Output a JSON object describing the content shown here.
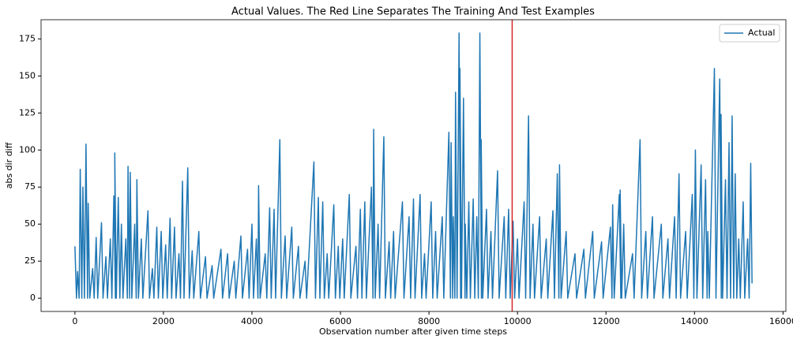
{
  "chart_data": {
    "type": "line",
    "title": "Actual Values. The Red Line Separates The Training And Test Examples",
    "x_label": "Observation number after given time steps",
    "y_label": "abs dir diff",
    "x": [
      0,
      35,
      60,
      95,
      120,
      155,
      180,
      215,
      250,
      285,
      300,
      335,
      400,
      435,
      480,
      515,
      600,
      635,
      700,
      735,
      800,
      835,
      880,
      915,
      900,
      935,
      980,
      1015,
      1050,
      1085,
      1150,
      1185,
      1200,
      1235,
      1250,
      1285,
      1350,
      1385,
      1400,
      1435,
      1500,
      1535,
      1650,
      1685,
      1750,
      1785,
      1850,
      1885,
      1950,
      1985,
      2050,
      2085,
      2150,
      2185,
      2250,
      2285,
      2350,
      2385,
      2430,
      2465,
      2550,
      2585,
      2650,
      2685,
      2800,
      2835,
      2950,
      2985,
      3100,
      3135,
      3300,
      3335,
      3450,
      3485,
      3600,
      3635,
      3750,
      3785,
      3900,
      3935,
      4000,
      4035,
      4100,
      4135,
      4150,
      4185,
      4300,
      4335,
      4400,
      4435,
      4500,
      4535,
      4630,
      4665,
      4750,
      4785,
      4900,
      4935,
      5050,
      5085,
      5200,
      5235,
      5400,
      5435,
      5500,
      5535,
      5600,
      5635,
      5700,
      5735,
      5850,
      5885,
      5950,
      5985,
      6050,
      6085,
      6200,
      6235,
      6350,
      6385,
      6450,
      6485,
      6550,
      6585,
      6700,
      6735,
      6750,
      6785,
      6850,
      6885,
      6980,
      7015,
      7100,
      7135,
      7200,
      7235,
      7400,
      7435,
      7550,
      7585,
      7650,
      7685,
      7800,
      7835,
      7900,
      7935,
      8050,
      8085,
      8150,
      8185,
      8300,
      8335,
      8450,
      8485,
      8500,
      8535,
      8550,
      8585,
      8600,
      8635,
      8680,
      8715,
      8700,
      8735,
      8780,
      8815,
      8820,
      8855,
      8900,
      8935,
      9000,
      9035,
      9080,
      9115,
      9150,
      9185,
      9180,
      9215,
      9300,
      9335,
      9400,
      9435,
      9550,
      9585,
      9700,
      9735,
      9800,
      9835,
      9900,
      9935,
      10000,
      10035,
      10150,
      10185,
      10250,
      10285,
      10350,
      10385,
      10500,
      10535,
      10650,
      10685,
      10800,
      10835,
      10900,
      10935,
      10950,
      10985,
      11100,
      11135,
      11300,
      11335,
      11500,
      11535,
      11700,
      11735,
      11900,
      11935,
      12100,
      12135,
      12150,
      12185,
      12300,
      12335,
      12320,
      12355,
      12400,
      12435,
      12600,
      12635,
      12770,
      12805,
      12900,
      12935,
      13050,
      13085,
      13250,
      13285,
      13400,
      13435,
      13550,
      13585,
      13650,
      13685,
      13800,
      13835,
      13950,
      13985,
      14020,
      14055,
      14150,
      14185,
      14250,
      14285,
      14300,
      14335,
      14450,
      14485,
      14570,
      14605,
      14600,
      14635,
      14700,
      14735,
      14780,
      14815,
      14850,
      14885,
      14920,
      14955,
      15000,
      15035,
      15100,
      15135,
      15200,
      15235,
      15270,
      15300
    ],
    "series": [
      {
        "name": "Actual",
        "color": "#1f77b4",
        "values": [
          35,
          0,
          18,
          0,
          87,
          0,
          75,
          0,
          104,
          0,
          64,
          0,
          20,
          0,
          41,
          0,
          51,
          0,
          28,
          0,
          40,
          0,
          69,
          0,
          98,
          0,
          68,
          0,
          50,
          0,
          40,
          0,
          89,
          0,
          85,
          0,
          50,
          0,
          80,
          0,
          40,
          0,
          59,
          0,
          20,
          0,
          48,
          0,
          45,
          0,
          36,
          0,
          54,
          0,
          48,
          0,
          30,
          0,
          79,
          0,
          88,
          0,
          32,
          0,
          45,
          0,
          28,
          0,
          22,
          0,
          33,
          0,
          30,
          0,
          25,
          0,
          42,
          0,
          33,
          0,
          50,
          0,
          40,
          0,
          76,
          0,
          30,
          0,
          61,
          0,
          60,
          0,
          107,
          0,
          42,
          0,
          48,
          0,
          35,
          0,
          25,
          0,
          92,
          0,
          68,
          0,
          65,
          0,
          30,
          0,
          63,
          0,
          35,
          0,
          40,
          0,
          70,
          0,
          35,
          0,
          60,
          0,
          65,
          0,
          75,
          0,
          114,
          0,
          50,
          0,
          109,
          0,
          38,
          0,
          45,
          0,
          65,
          0,
          55,
          0,
          67,
          0,
          70,
          0,
          30,
          0,
          65,
          0,
          45,
          0,
          55,
          0,
          112,
          0,
          105,
          0,
          55,
          0,
          139,
          0,
          179,
          0,
          155,
          0,
          135,
          0,
          50,
          0,
          65,
          0,
          67,
          0,
          55,
          0,
          179,
          0,
          107,
          0,
          60,
          0,
          45,
          0,
          86,
          0,
          55,
          0,
          60,
          0,
          52,
          0,
          40,
          0,
          65,
          0,
          123,
          0,
          50,
          0,
          55,
          0,
          40,
          0,
          59,
          0,
          84,
          0,
          90,
          0,
          45,
          0,
          30,
          0,
          33,
          0,
          45,
          0,
          38,
          0,
          48,
          0,
          63,
          0,
          70,
          0,
          73,
          0,
          50,
          0,
          30,
          0,
          107,
          0,
          45,
          0,
          55,
          0,
          50,
          0,
          40,
          0,
          55,
          0,
          84,
          0,
          45,
          0,
          70,
          0,
          100,
          0,
          90,
          0,
          80,
          0,
          45,
          0,
          155,
          0,
          148,
          0,
          124,
          0,
          80,
          0,
          105,
          0,
          123,
          0,
          84,
          0,
          40,
          0,
          65,
          0,
          40,
          0,
          91,
          10
        ]
      }
    ],
    "vline_x": 9880,
    "vline_color": "#d62728",
    "xlim": [
      -765,
      16065
    ],
    "ylim": [
      -8.95,
      187.95
    ],
    "xticks": [
      0,
      2000,
      4000,
      6000,
      8000,
      10000,
      12000,
      14000,
      16000
    ],
    "yticks": [
      0,
      25,
      50,
      75,
      100,
      125,
      150,
      175
    ],
    "legend": "upper right"
  }
}
